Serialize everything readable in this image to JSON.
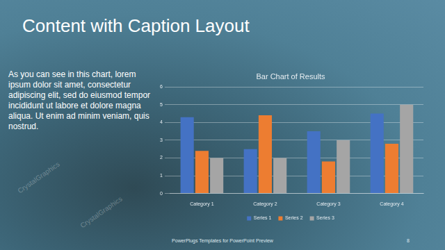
{
  "slide_title": "Content with Caption Layout",
  "caption": "As you can see in this chart, lorem ipsum dolor sit amet, consectetur adipiscing elit, sed do eiusmod tempor incididunt ut labore et dolore magna aliqua. Ut enim ad minim veniam, quis nostrud.",
  "footer": "PowerPlugs Templates for PowerPoint Preview",
  "page_number": "8",
  "watermark": "CrystalGraphics",
  "chart_data": {
    "type": "bar",
    "title": "Bar Chart of Results",
    "categories": [
      "Category 1",
      "Category 2",
      "Category 3",
      "Category 4"
    ],
    "series": [
      {
        "name": "Series 1",
        "color": "#4472c4",
        "values": [
          4.3,
          2.5,
          3.5,
          4.5
        ]
      },
      {
        "name": "Series 2",
        "color": "#ed7d31",
        "values": [
          2.4,
          4.4,
          1.8,
          2.8
        ]
      },
      {
        "name": "Series 3",
        "color": "#a5a5a5",
        "values": [
          2,
          2,
          3,
          5
        ]
      }
    ],
    "ylim": [
      0,
      6
    ],
    "yticks": [
      0,
      1,
      2,
      3,
      4,
      5,
      6
    ],
    "grid": true,
    "legend": "bottom"
  }
}
